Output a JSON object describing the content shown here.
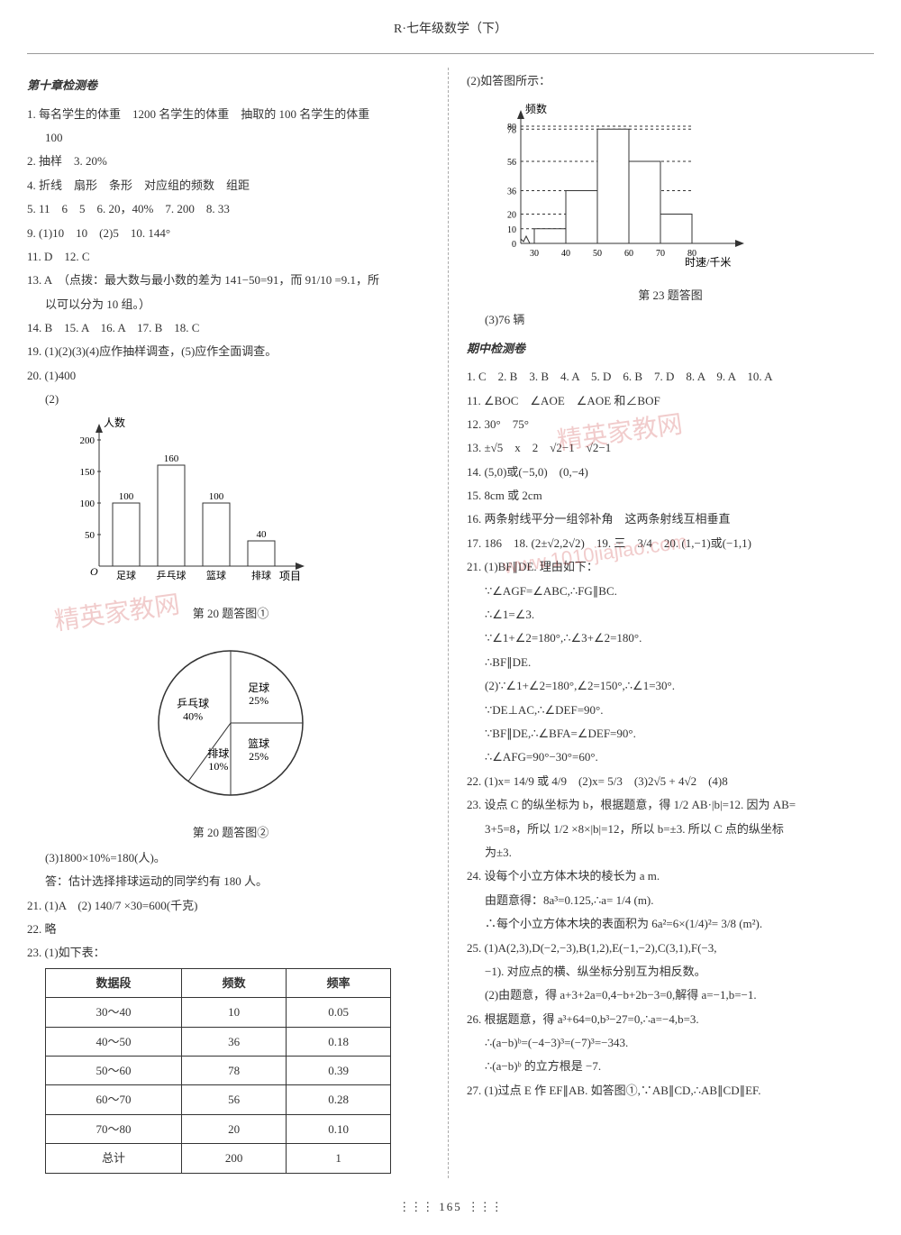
{
  "header": "R·七年级数学（下）",
  "leftCol": {
    "title": "第十章检测卷",
    "q1": "1. 每名学生的体重　1200 名学生的体重　抽取的 100 名学生的体重",
    "q1b": "100",
    "q2": "2. 抽样　3. 20%",
    "q4": "4. 折线　扇形　条形　对应组的频数　组距",
    "q5": "5. 11　6　5　6. 20，40%　7. 200　8. 33",
    "q9": "9. (1)10　10　(2)5　10. 144°",
    "q11": "11. D　12. C",
    "q13": "13. A　（点拨：最大数与最小数的差为 141−50=91，而 91/10 =9.1，所",
    "q13b": "以可以分为 10 组。）",
    "q14": "14. B　15. A　16. A　17. B　18. C",
    "q19": "19. (1)(2)(3)(4)应作抽样调查，(5)应作全面调查。",
    "q20": "20. (1)400",
    "q20_2": "(2)",
    "barChart": {
      "type": "bar",
      "ylabel": "人数",
      "xlabel": "项目",
      "categories": [
        "足球",
        "乒乓球",
        "篮球",
        "排球"
      ],
      "values": [
        100,
        160,
        100,
        40
      ],
      "labels": [
        "100",
        "160",
        "100",
        "40"
      ],
      "yticks": [
        50,
        100,
        150,
        200
      ],
      "bar_fill": "#ffffff",
      "bar_stroke": "#333333",
      "axis_color": "#333333",
      "caption": "第 20 题答图①"
    },
    "pieChart": {
      "type": "pie",
      "slices": [
        {
          "label": "足球",
          "pct": "25%",
          "value": 25
        },
        {
          "label": "篮球",
          "pct": "25%",
          "value": 25
        },
        {
          "label": "排球",
          "pct": "10%",
          "value": 10
        },
        {
          "label": "乒乓球",
          "pct": "40%",
          "value": 40
        }
      ],
      "fill": "#ffffff",
      "stroke": "#333333",
      "caption": "第 20 题答图②"
    },
    "q20_3": "(3)1800×10%=180(人)。",
    "q20_3b": "答：估计选择排球运动的同学约有 180 人。",
    "q21": "21. (1)A　(2) 140/7 ×30=600(千克)",
    "q22": "22. 略",
    "q23": "23. (1)如下表：",
    "table": {
      "columns": [
        "数据段",
        "频数",
        "频率"
      ],
      "rows": [
        [
          "30～40",
          "10",
          "0.05"
        ],
        [
          "40～50",
          "36",
          "0.18"
        ],
        [
          "50～60",
          "78",
          "0.39"
        ],
        [
          "60～70",
          "56",
          "0.28"
        ],
        [
          "70～80",
          "20",
          "0.10"
        ],
        [
          "总计",
          "200",
          "1"
        ]
      ]
    }
  },
  "rightCol": {
    "q2intro": "(2)如答图所示：",
    "histogram": {
      "type": "histogram",
      "ylabel": "频数",
      "xlabel": "时速/千米",
      "xvalues": [
        "30",
        "40",
        "50",
        "60",
        "70",
        "80"
      ],
      "yticks": [
        0,
        10,
        20,
        36,
        56,
        78,
        80
      ],
      "bars": [
        10,
        36,
        78,
        56,
        20
      ],
      "bar_fill": "#ffffff",
      "bar_stroke": "#333333",
      "axis_color": "#333333",
      "caption": "第 23 题答图"
    },
    "q3": "(3)76 辆",
    "midTitle": "期中检测卷",
    "m1": "1. C　2. B　3. B　4. A　5. D　6. B　7. D　8. A　9. A　10. A",
    "m11": "11. ∠BOC　∠AOE　∠AOE 和∠BOF",
    "m12": "12. 30°　75°",
    "m13": "13. ±√5　x　2　√2−1　√2−1",
    "m14": "14. (5,0)或(−5,0)　(0,−4)",
    "m15": "15. 8cm 或 2cm",
    "m16": "16. 两条射线平分一组邻补角　这两条射线互相垂直",
    "m17": "17. 186　18. (2±√2,2√2)　19. 三　3/4　20. (1,−1)或(−1,1)",
    "m21a": "21. (1)BF∥DE. 理由如下：",
    "m21b": "∵∠AGF=∠ABC,∴FG∥BC.",
    "m21c": "∴∠1=∠3.",
    "m21d": "∵∠1+∠2=180°,∴∠3+∠2=180°.",
    "m21e": "∴BF∥DE.",
    "m21f": "(2)∵∠1+∠2=180°,∠2=150°,∴∠1=30°.",
    "m21g": "∵DE⊥AC,∴∠DEF=90°.",
    "m21h": "∵BF∥DE,∴∠BFA=∠DEF=90°.",
    "m21i": "∴∠AFG=90°−30°=60°.",
    "m22": "22. (1)x= 14/9 或 4/9　(2)x= 5/3　(3)2√5 + 4√2　(4)8",
    "m23a": "23. 设点 C 的纵坐标为 b，根据题意，得 1/2 AB·|b|=12. 因为 AB=",
    "m23b": "3+5=8，所以 1/2 ×8×|b|=12，所以 b=±3. 所以 C 点的纵坐标",
    "m23c": "为±3.",
    "m24a": "24. 设每个小立方体木块的棱长为 a m.",
    "m24b": "由题意得：8a³=0.125,∴a= 1/4 (m).",
    "m24c": "∴每个小立方体木块的表面积为 6a²=6×(1/4)²= 3/8 (m²).",
    "m25a": "25. (1)A(2,3),D(−2,−3),B(1,2),E(−1,−2),C(3,1),F(−3,",
    "m25b": "−1). 对应点的横、纵坐标分别互为相反数。",
    "m25c": "(2)由题意，得 a+3+2a=0,4−b+2b−3=0,解得 a=−1,b=−1.",
    "m26a": "26. 根据题意，得 a³+64=0,b³−27=0,∴a=−4,b=3.",
    "m26b": "∴(a−b)ᵇ=(−4−3)³=(−7)³=−343.",
    "m26c": "∴(a−b)ᵇ 的立方根是 −7.",
    "m27": "27. (1)过点 E 作 EF∥AB. 如答图①,∵AB∥CD,∴AB∥CD∥EF."
  },
  "watermark": {
    "text": "精英家教网",
    "url": "www.1010jiajiao.com"
  },
  "pageNum": "165"
}
